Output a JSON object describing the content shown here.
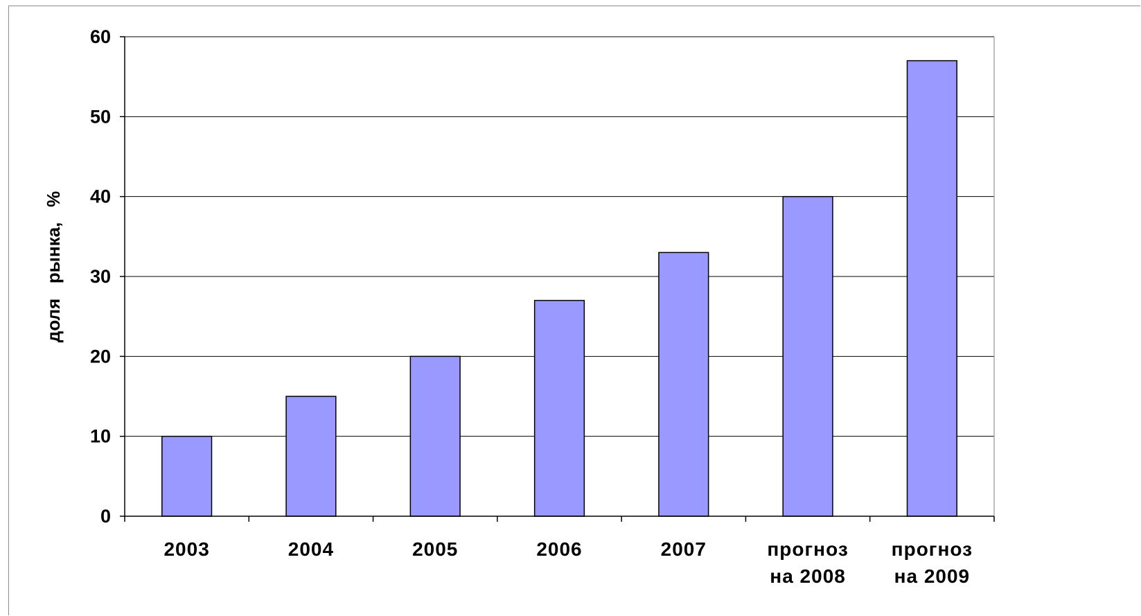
{
  "chart_data": {
    "type": "bar",
    "categories": [
      "2003",
      "2004",
      "2005",
      "2006",
      "2007",
      "прогноз на 2008",
      "прогноз на 2009"
    ],
    "category_lines": [
      [
        "2003"
      ],
      [
        "2004"
      ],
      [
        "2005"
      ],
      [
        "2006"
      ],
      [
        "2007"
      ],
      [
        "прогноз",
        "на 2008"
      ],
      [
        "прогноз",
        "на 2009"
      ]
    ],
    "values": [
      10,
      15,
      20,
      27,
      33,
      40,
      57
    ],
    "title": "",
    "xlabel": "",
    "ylabel": "доля   рынка,   %",
    "ylim": [
      0,
      60
    ],
    "yticks": [
      "0",
      "10",
      "20",
      "30",
      "40",
      "50",
      "60"
    ],
    "grid": true,
    "legend": "none",
    "colors": {
      "bar_fill": "#9999ff",
      "bar_stroke": "#000000",
      "grid": "#000000",
      "axis": "#000000"
    }
  }
}
